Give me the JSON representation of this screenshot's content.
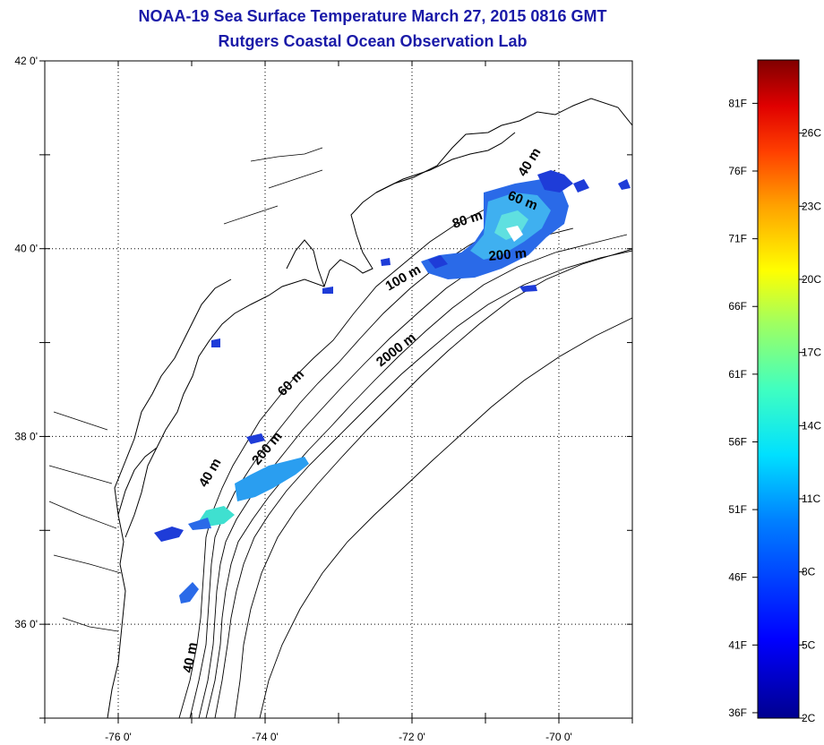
{
  "title": "NOAA-19 Sea Surface Temperature March 27, 2015 0816 GMT",
  "subtitle": "Rutgers Coastal Ocean Observation Lab",
  "map": {
    "x_ticks": [
      {
        "value": -76,
        "label": "-76 0'"
      },
      {
        "value": -74,
        "label": "-74 0'"
      },
      {
        "value": -72,
        "label": "-72 0'"
      },
      {
        "value": -70,
        "label": "-70 0'"
      }
    ],
    "y_ticks": [
      {
        "value": 42,
        "label": "42 0'"
      },
      {
        "value": 40,
        "label": "40 0'"
      },
      {
        "value": 38,
        "label": "38 0'"
      },
      {
        "value": 36,
        "label": "36 0'"
      }
    ],
    "lon_range": [
      -77,
      -69
    ],
    "lat_range": [
      35,
      42
    ],
    "grid": "dotted",
    "isobath_labels": [
      {
        "text": "40 m"
      },
      {
        "text": "60 m"
      },
      {
        "text": "80 m"
      },
      {
        "text": "100 m"
      },
      {
        "text": "200 m"
      },
      {
        "text": "2000 m"
      },
      {
        "text": "60 m"
      },
      {
        "text": "40 m"
      },
      {
        "text": "200 m"
      },
      {
        "text": "40 m"
      }
    ]
  },
  "colorbar": {
    "f_labels": [
      "81F",
      "76F",
      "71F",
      "66F",
      "61F",
      "56F",
      "51F",
      "46F",
      "41F",
      "36F"
    ],
    "c_labels": [
      "26C",
      "23C",
      "20C",
      "17C",
      "14C",
      "11C",
      "8C",
      "5C",
      "2C"
    ],
    "colors": [
      "#00008f",
      "#0000ff",
      "#0080ff",
      "#00e0ff",
      "#40ffc0",
      "#a0ff60",
      "#ffff00",
      "#ffa000",
      "#ff4000",
      "#e00000",
      "#800000"
    ]
  },
  "colors": {
    "title": "#1a1aa8",
    "sst_cold": "#1e3cd8",
    "sst_mid": "#2a9ef0",
    "sst_warm": "#3fe0d0"
  }
}
